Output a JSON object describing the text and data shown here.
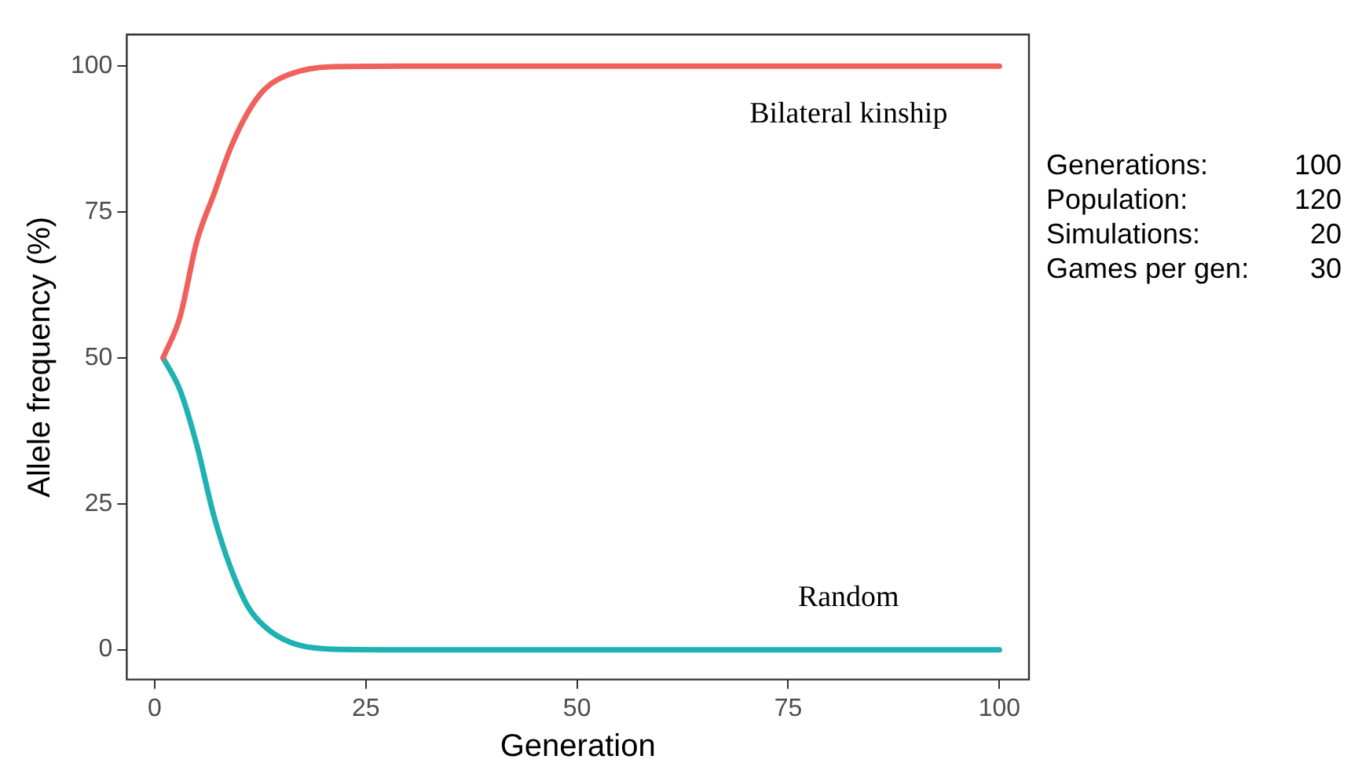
{
  "chart_data": {
    "type": "line",
    "xlabel": "Generation",
    "ylabel": "Allele frequency (%)",
    "xlim": [
      -3.3,
      103.5
    ],
    "xticks": [
      0,
      25,
      50,
      75,
      100
    ],
    "ylim": [
      -5.1,
      105.4
    ],
    "yticks": [
      0,
      25,
      50,
      75,
      100
    ],
    "grid": false,
    "legend": false,
    "marker": "none",
    "line_style": "solid",
    "series": [
      {
        "name": "Bilateral kinship",
        "color": "#f0615d",
        "x": [
          1,
          3,
          5,
          7,
          9,
          11,
          13,
          16,
          21,
          30,
          50,
          75,
          100
        ],
        "values": [
          50,
          57,
          70,
          78,
          86,
          92,
          96,
          98.6,
          99.9,
          100,
          100,
          100,
          100
        ]
      },
      {
        "name": "Random",
        "color": "#1fb2b2",
        "x": [
          1,
          3,
          5,
          7,
          9,
          11,
          13,
          16,
          21,
          30,
          50,
          75,
          100
        ],
        "values": [
          50,
          44.5,
          35,
          23,
          14,
          7.5,
          4,
          1.3,
          0.1,
          0,
          0,
          0,
          0
        ]
      }
    ],
    "annotations": [
      "Generations: 100",
      "Population: 120",
      "Simulations: 20",
      "Games per gen: 30"
    ]
  }
}
